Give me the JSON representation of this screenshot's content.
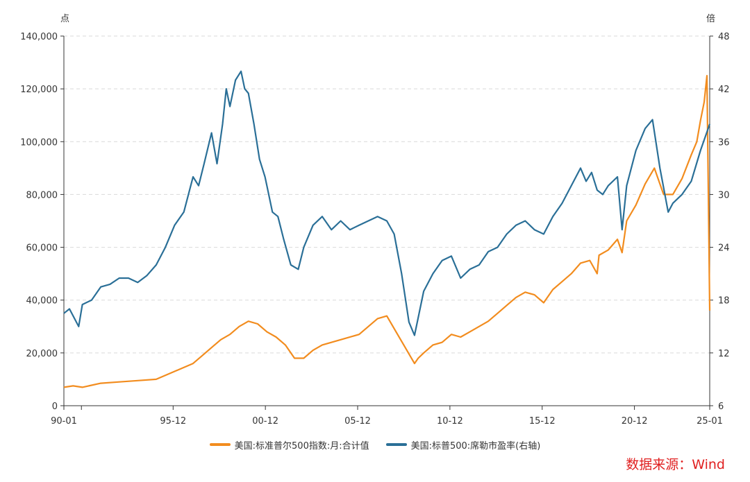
{
  "chart_data": {
    "type": "line",
    "title": "",
    "left_axis": {
      "unit": "点",
      "ylim": [
        0,
        140000
      ],
      "ticks": [
        "0",
        "20,000",
        "40,000",
        "60,000",
        "80,000",
        "100,000",
        "120,000",
        "140,000"
      ]
    },
    "right_axis": {
      "unit": "倍",
      "ylim": [
        6,
        48
      ],
      "ticks": [
        "6",
        "12",
        "18",
        "24",
        "30",
        "36",
        "42",
        "48"
      ]
    },
    "x_axis": {
      "xlim": [
        1990.0,
        2025.0
      ],
      "ticks": [
        "90-01",
        "95-12",
        "00-12",
        "05-12",
        "10-12",
        "15-12",
        "20-12",
        "25-01"
      ]
    },
    "grid": "horizontal-dashed",
    "legend_position": "bottom-center",
    "series": [
      {
        "name": "美国:标准普尔500指数:月:合计值",
        "axis": "left",
        "color": "#f28c1e",
        "x": [
          1990.0,
          1990.5,
          1991.0,
          1992.0,
          1993.0,
          1994.0,
          1995.0,
          1996.0,
          1997.0,
          1997.5,
          1998.0,
          1998.5,
          1999.0,
          1999.5,
          2000.0,
          2000.5,
          2001.0,
          2001.5,
          2002.0,
          2002.5,
          2003.0,
          2003.5,
          2004.0,
          2005.0,
          2006.0,
          2006.5,
          2007.0,
          2007.5,
          2008.0,
          2008.5,
          2009.0,
          2009.2,
          2009.5,
          2010.0,
          2010.5,
          2011.0,
          2011.5,
          2012.0,
          2013.0,
          2013.5,
          2014.0,
          2014.5,
          2015.0,
          2015.5,
          2016.0,
          2016.5,
          2017.0,
          2017.5,
          2018.0,
          2018.5,
          2018.9,
          2019.0,
          2019.5,
          2020.0,
          2020.25,
          2020.5,
          2021.0,
          2021.5,
          2022.0,
          2022.5,
          2023.0,
          2023.5,
          2024.0,
          2024.3,
          2024.5,
          2024.7,
          2024.85,
          2025.0
        ],
        "values": [
          7000,
          7500,
          7000,
          8500,
          9000,
          9500,
          10000,
          13000,
          16000,
          19000,
          22000,
          25000,
          27000,
          30000,
          32000,
          31000,
          28000,
          26000,
          23000,
          18000,
          18000,
          21000,
          23000,
          25000,
          27000,
          30000,
          33000,
          34000,
          28000,
          22000,
          16000,
          18000,
          20000,
          23000,
          24000,
          27000,
          26000,
          28000,
          32000,
          35000,
          38000,
          41000,
          43000,
          42000,
          39000,
          44000,
          47000,
          50000,
          54000,
          55000,
          50000,
          57000,
          59000,
          63000,
          58000,
          70000,
          76000,
          84000,
          90000,
          80000,
          80000,
          86000,
          95000,
          100000,
          108000,
          115000,
          125000,
          36000
        ]
      },
      {
        "name": "美国:标普500:席勒市盈率(右轴)",
        "axis": "right",
        "color": "#2a6f97",
        "x": [
          1990.0,
          1990.3,
          1990.8,
          1991.0,
          1991.5,
          1992.0,
          1992.5,
          1993.0,
          1993.5,
          1994.0,
          1994.5,
          1995.0,
          1995.5,
          1996.0,
          1996.5,
          1997.0,
          1997.3,
          1997.6,
          1998.0,
          1998.3,
          1998.6,
          1998.8,
          1999.0,
          1999.3,
          1999.6,
          1999.8,
          2000.0,
          2000.3,
          2000.6,
          2000.9,
          2001.0,
          2001.3,
          2001.6,
          2001.9,
          2002.3,
          2002.7,
          2003.0,
          2003.5,
          2004.0,
          2004.5,
          2005.0,
          2005.5,
          2006.0,
          2006.5,
          2007.0,
          2007.5,
          2007.9,
          2008.3,
          2008.7,
          2009.0,
          2009.2,
          2009.5,
          2010.0,
          2010.5,
          2011.0,
          2011.5,
          2012.0,
          2012.5,
          2013.0,
          2013.5,
          2014.0,
          2014.5,
          2015.0,
          2015.5,
          2016.0,
          2016.5,
          2017.0,
          2017.5,
          2018.0,
          2018.3,
          2018.6,
          2018.9,
          2019.2,
          2019.5,
          2020.0,
          2020.25,
          2020.5,
          2021.0,
          2021.5,
          2021.9,
          2022.3,
          2022.75,
          2023.0,
          2023.5,
          2024.0,
          2024.5,
          2025.0
        ],
        "values": [
          16.5,
          17.0,
          15.0,
          17.5,
          18.0,
          19.5,
          19.8,
          20.5,
          20.5,
          20.0,
          20.8,
          22.0,
          24.0,
          26.5,
          28.0,
          32.0,
          31.0,
          33.5,
          37.0,
          33.5,
          38.0,
          42.0,
          40.0,
          43.0,
          44.0,
          42.0,
          41.5,
          38.0,
          34.0,
          32.0,
          31.0,
          28.0,
          27.5,
          25.0,
          22.0,
          21.5,
          24.0,
          26.5,
          27.5,
          26.0,
          27.0,
          26.0,
          26.5,
          27.0,
          27.5,
          27.0,
          25.5,
          21.0,
          15.5,
          14.0,
          16.0,
          19.0,
          21.0,
          22.5,
          23.0,
          20.5,
          21.5,
          22.0,
          23.5,
          24.0,
          25.5,
          26.5,
          27.0,
          26.0,
          25.5,
          27.5,
          29.0,
          31.0,
          33.0,
          31.5,
          32.5,
          30.5,
          30.0,
          31.0,
          32.0,
          26.0,
          31.0,
          35.0,
          37.5,
          38.5,
          33.0,
          28.0,
          29.0,
          30.0,
          31.5,
          35.0,
          38.0
        ]
      }
    ],
    "source": "数据来源：Wind"
  }
}
